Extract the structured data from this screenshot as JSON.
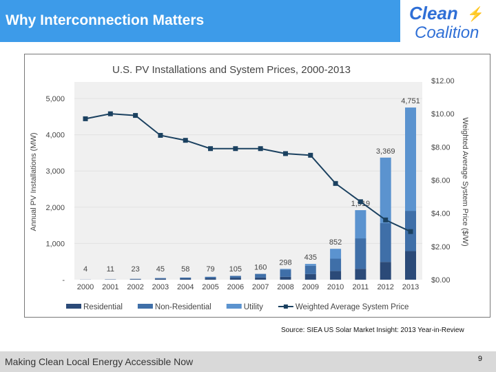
{
  "slide": {
    "title": "Why Interconnection Matters",
    "logo": {
      "line1": "Clean",
      "line2": "Coalition"
    },
    "source": "Source: SIEA US Solar Market Insight: 2013 Year-in-Review",
    "footer": "Making Clean Local Energy Accessible Now",
    "page_number": "9"
  },
  "chart_data": {
    "type": "bar",
    "stacked": true,
    "title": "U.S. PV Installations and System Prices, 2000-2013",
    "ylabel": "Annual PV Installations (MW)",
    "y2label": "Weighted Average System Price ($/W)",
    "ylim": [
      0,
      5500
    ],
    "y2lim": [
      0,
      12
    ],
    "yticks": [
      "-",
      "1,000",
      "2,000",
      "3,000",
      "4,000",
      "5,000"
    ],
    "y2ticks": [
      "$0.00",
      "$2.00",
      "$4.00",
      "$6.00",
      "$8.00",
      "$10.00",
      "$12.00"
    ],
    "categories": [
      "2000",
      "2001",
      "2002",
      "2003",
      "2004",
      "2005",
      "2006",
      "2007",
      "2008",
      "2009",
      "2010",
      "2011",
      "2012",
      "2013"
    ],
    "series": [
      {
        "name": "Residential",
        "color": "#2b4a78",
        "values": [
          2,
          6,
          13,
          25,
          30,
          40,
          55,
          60,
          80,
          155,
          240,
          300,
          490,
          790
        ]
      },
      {
        "name": "Non-Residential",
        "color": "#3f6fa8",
        "values": [
          2,
          5,
          10,
          20,
          28,
          39,
          50,
          100,
          200,
          230,
          340,
          840,
          1070,
          1110
        ]
      },
      {
        "name": "Utility",
        "color": "#5b93cf",
        "values": [
          0,
          0,
          0,
          0,
          0,
          0,
          0,
          0,
          18,
          50,
          272,
          779,
          1809,
          2851
        ]
      },
      {
        "name": "Weighted Average System Price",
        "type": "line",
        "axis": "right",
        "color": "#1b4160",
        "values": [
          9.7,
          10.0,
          9.9,
          8.7,
          8.4,
          7.9,
          7.9,
          7.9,
          7.6,
          7.5,
          5.8,
          4.7,
          3.6,
          2.9
        ]
      }
    ],
    "totals": [
      "4",
      "11",
      "23",
      "45",
      "58",
      "79",
      "105",
      "160",
      "298",
      "435",
      "852",
      "1,919",
      "3,369",
      "4,751"
    ],
    "grid": true,
    "legend": "bottom",
    "background": "#f0f0f0"
  }
}
